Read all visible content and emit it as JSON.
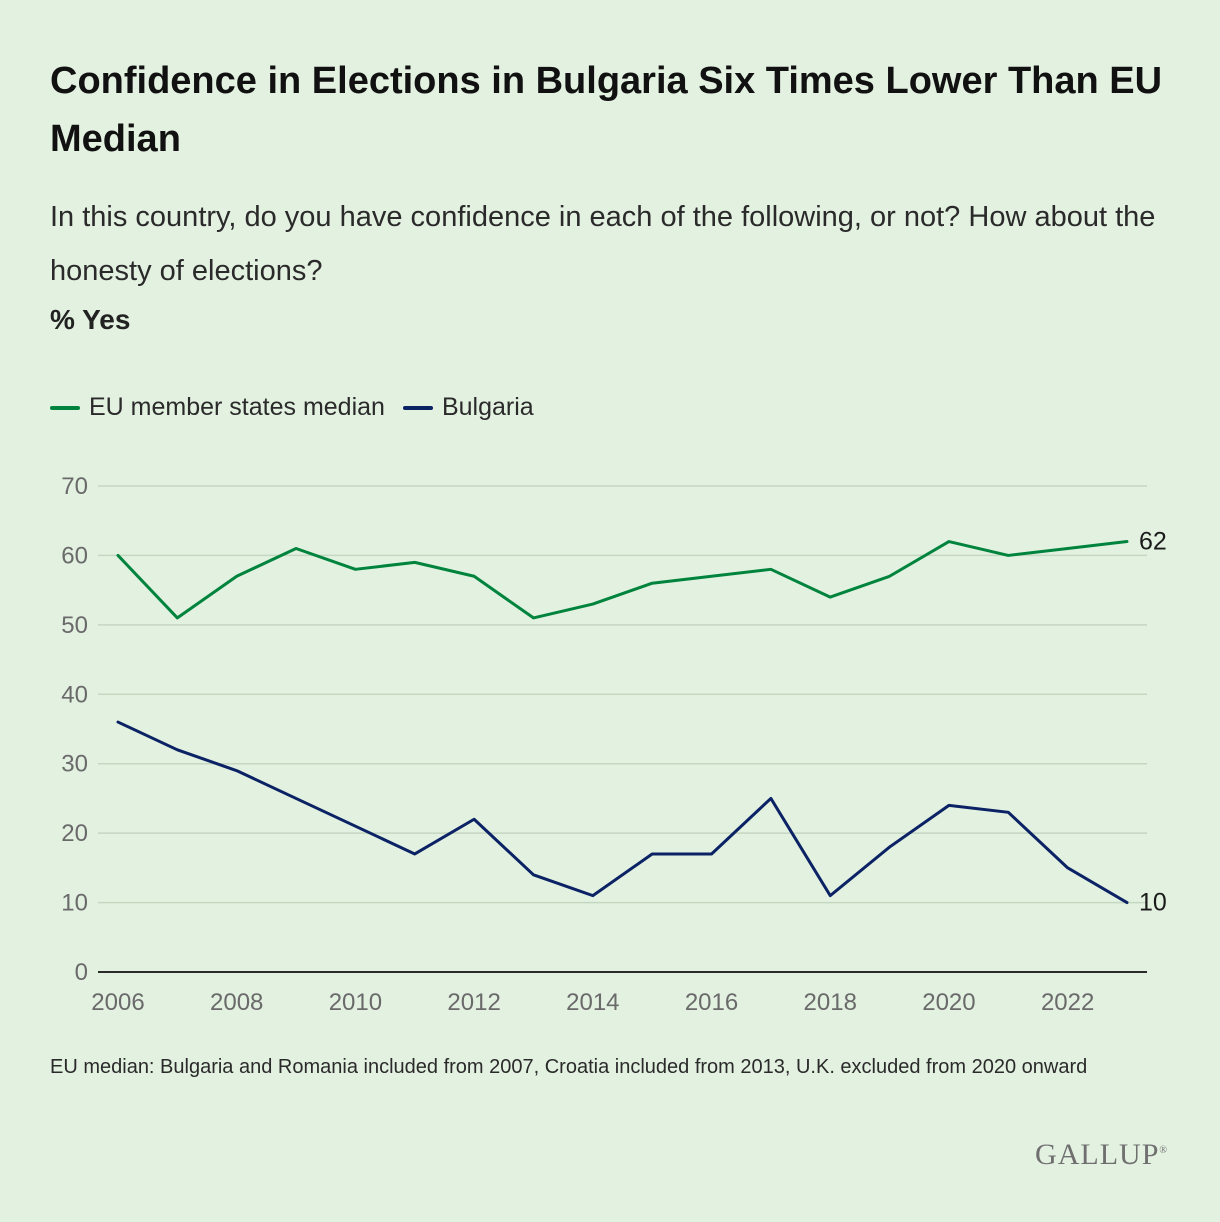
{
  "header": {
    "title": "Confidence in Elections in Bulgaria Six Times Lower Than EU Median",
    "subtitle": "In this country, do you have confidence in each of the following, or not? How about the honesty of elections?",
    "unit": "% Yes"
  },
  "legend": {
    "items": [
      {
        "label": "EU member states median",
        "color": "#00843d"
      },
      {
        "label": "Bulgaria",
        "color": "#0b2265"
      }
    ]
  },
  "footnote": "EU median: Bulgaria and Romania included from 2007, Croatia included from 2013, U.K. excluded from 2020 onward",
  "brand": {
    "logo": "GALLUP"
  },
  "chart_data": {
    "type": "line",
    "title": "Confidence in Elections in Bulgaria Six Times Lower Than EU Median",
    "xlabel": "",
    "ylabel": "% Yes",
    "x": [
      2006,
      2007,
      2008,
      2009,
      2010,
      2011,
      2012,
      2013,
      2014,
      2015,
      2016,
      2017,
      2018,
      2019,
      2020,
      2021,
      2022,
      2023
    ],
    "x_ticks": [
      "2006",
      "2008",
      "2010",
      "2012",
      "2014",
      "2016",
      "2018",
      "2020",
      "2022"
    ],
    "y_ticks": [
      "0",
      "10",
      "20",
      "30",
      "40",
      "50",
      "60",
      "70"
    ],
    "ylim": [
      0,
      70
    ],
    "xlim": [
      2006,
      2023
    ],
    "grid": true,
    "legend_position": "top-left",
    "series": [
      {
        "name": "EU member states median",
        "color": "#00843d",
        "values": [
          60,
          51,
          57,
          61,
          58,
          59,
          57,
          51,
          53,
          56,
          57,
          58,
          54,
          57,
          62,
          60,
          61,
          62
        ],
        "end_label": "62"
      },
      {
        "name": "Bulgaria",
        "color": "#0b2265",
        "values": [
          36,
          32,
          29,
          25,
          21,
          17,
          22,
          14,
          11,
          17,
          17,
          25,
          11,
          18,
          24,
          23,
          15,
          10
        ],
        "end_label": "10"
      }
    ]
  }
}
